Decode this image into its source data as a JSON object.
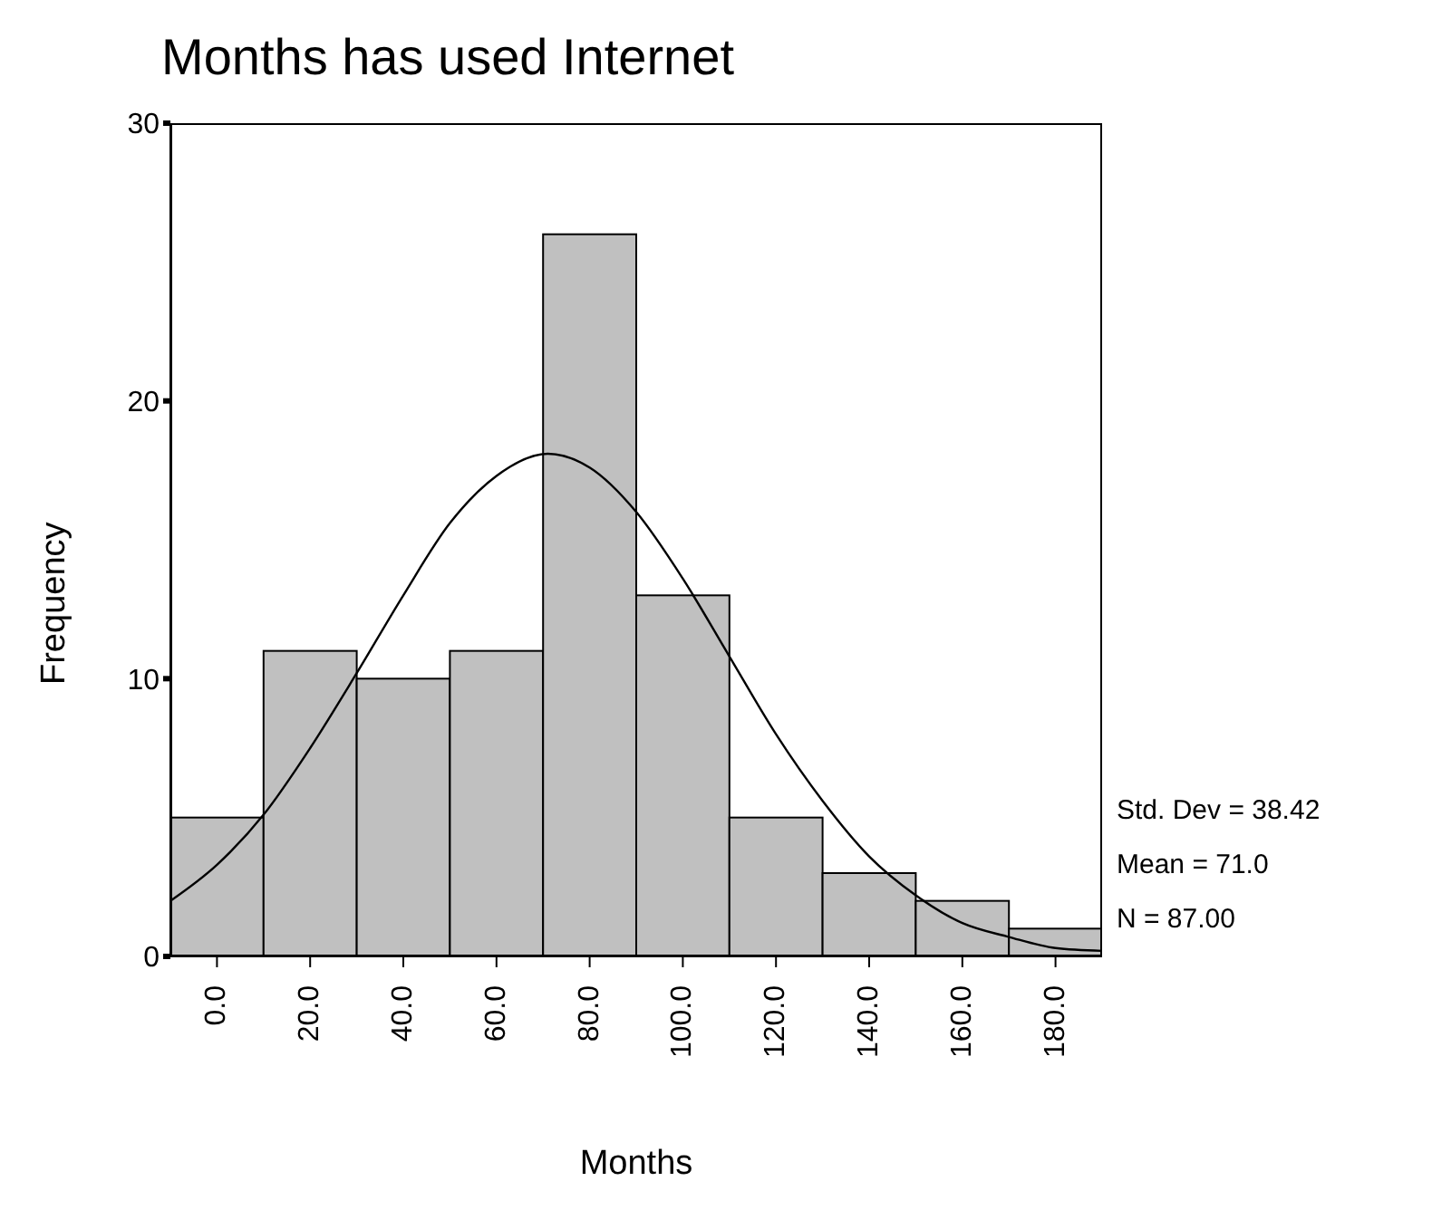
{
  "chart_data": {
    "type": "histogram",
    "title": "Months has used Internet",
    "xlabel": "Months",
    "ylabel": "Frequency",
    "bins": [
      -10,
      10,
      30,
      50,
      70,
      90,
      110,
      130,
      150,
      170,
      190
    ],
    "values": [
      5,
      11,
      10,
      11,
      26,
      13,
      5,
      3,
      2,
      1
    ],
    "color": "#c0c0c0",
    "series": [
      {
        "type": "line",
        "color": "#000000",
        "x": [
          -10,
          0,
          10,
          20,
          30,
          40,
          50,
          60,
          71,
          80,
          90,
          100,
          110,
          120,
          130,
          140,
          150,
          160,
          170,
          180,
          190
        ],
        "values": [
          2.0,
          3.3,
          5.1,
          7.5,
          10.2,
          13.0,
          15.6,
          17.3,
          18.1,
          17.6,
          16.0,
          13.6,
          10.8,
          8.0,
          5.6,
          3.6,
          2.2,
          1.2,
          0.7,
          0.3,
          0.2
        ]
      }
    ],
    "xlim": [
      -10,
      190
    ],
    "xticks": [
      {
        "value": 0,
        "label": "0.0"
      },
      {
        "value": 20,
        "label": "20.0"
      },
      {
        "value": 40,
        "label": "40.0"
      },
      {
        "value": 60,
        "label": "60.0"
      },
      {
        "value": 80,
        "label": "80.0"
      },
      {
        "value": 100,
        "label": "100.0"
      },
      {
        "value": 120,
        "label": "120.0"
      },
      {
        "value": 140,
        "label": "140.0"
      },
      {
        "value": 160,
        "label": "160.0"
      },
      {
        "value": 180,
        "label": "180.0"
      }
    ],
    "ylim": [
      0,
      30
    ],
    "yticks": [
      0,
      10,
      20,
      30
    ],
    "grid": false,
    "legend": false,
    "marker": "none",
    "line_style": "solid",
    "annotations": [
      "Std. Dev = 38.42",
      "Mean = 71.0",
      "N = 87.00"
    ]
  }
}
